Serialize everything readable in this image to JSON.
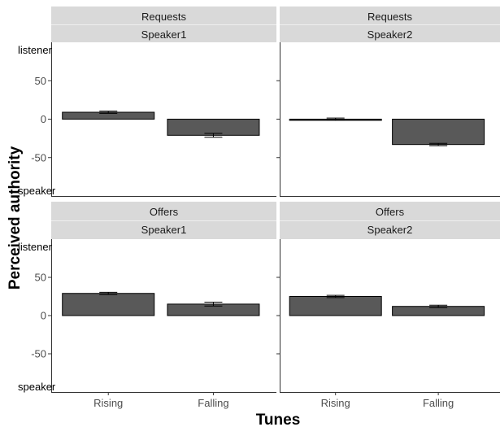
{
  "chart_data": {
    "type": "bar",
    "xlabel": "Tunes",
    "ylabel": "Perceived authority",
    "categories": [
      "Rising",
      "Falling"
    ],
    "y_ticks": [
      -50,
      0,
      50
    ],
    "y_tick_labels": [
      "-50",
      "0",
      "50"
    ],
    "ylim": [
      -100,
      100
    ],
    "y_end_labels": {
      "top": "listener",
      "bottom": "speaker"
    },
    "grid": false,
    "bar_color": "#595959",
    "strip_color": "#d9d9d9",
    "panels": [
      {
        "row_strip": "Requests",
        "col_strip": "Speaker1",
        "values": [
          9,
          -21
        ],
        "errors": [
          1.5,
          2.5
        ]
      },
      {
        "row_strip": "Requests",
        "col_strip": "Speaker2",
        "values": [
          0,
          -33
        ],
        "errors": [
          1.5,
          1.5
        ]
      },
      {
        "row_strip": "Offers",
        "col_strip": "Speaker1",
        "values": [
          29,
          15
        ],
        "errors": [
          1.5,
          2.5
        ]
      },
      {
        "row_strip": "Offers",
        "col_strip": "Speaker2",
        "values": [
          25,
          12
        ],
        "errors": [
          1.5,
          1.5
        ]
      }
    ]
  }
}
